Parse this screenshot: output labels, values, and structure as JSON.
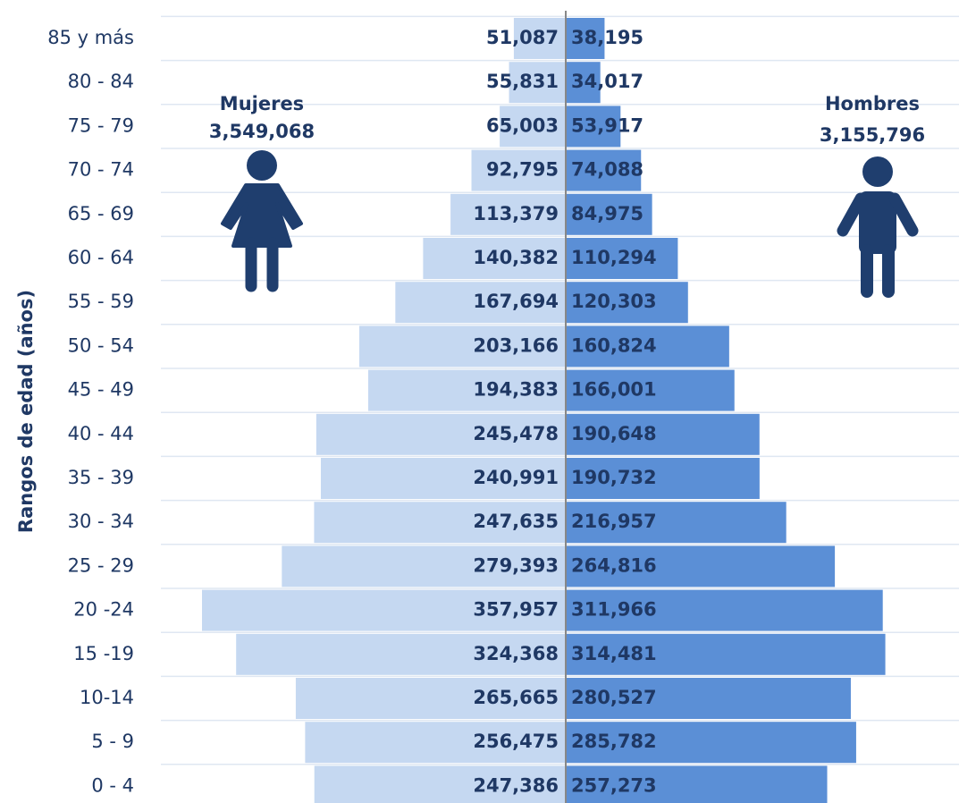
{
  "chart_data": {
    "type": "pyramid",
    "y_label": "Rangos de edad (años)",
    "categories": [
      "85 y más",
      "80 - 84",
      "75 - 79",
      "70 - 74",
      "65 - 69",
      "60 - 64",
      "55 - 59",
      "50 - 54",
      "45 - 49",
      "40 - 44",
      "35 - 39",
      "30 - 34",
      "25 - 29",
      "20 -24",
      "15 -19",
      "10-14",
      "5 - 9",
      "0 - 4"
    ],
    "series": [
      {
        "name": "Mujeres",
        "total_label": "3,549,068",
        "color": "#c5d8f1",
        "side": "left",
        "values": [
          51087,
          55831,
          65003,
          92795,
          113379,
          140382,
          167694,
          203166,
          194383,
          245478,
          240991,
          247635,
          279393,
          357957,
          324368,
          265665,
          256475,
          247386
        ],
        "value_labels": [
          "51,087",
          "55,831",
          "65,003",
          "92,795",
          "113,379",
          "140,382",
          "167,694",
          "203,166",
          "194,383",
          "245,478",
          "240,991",
          "247,635",
          "279,393",
          "357,957",
          "324,368",
          "265,665",
          "256,475",
          "247,386"
        ]
      },
      {
        "name": "Hombres",
        "total_label": "3,155,796",
        "color": "#5b8fd6",
        "side": "right",
        "values": [
          38195,
          34017,
          53917,
          74088,
          84975,
          110294,
          120303,
          160824,
          166001,
          190648,
          190732,
          216957,
          264816,
          311966,
          314481,
          280527,
          285782,
          257273
        ],
        "value_labels": [
          "38,195",
          "34,017",
          "53,917",
          "74,088",
          "84,975",
          "110,294",
          "120,303",
          "160,824",
          "166,001",
          "190,648",
          "190,732",
          "216,957",
          "264,816",
          "311,966",
          "314,481",
          "280,527",
          "285,782",
          "257,273"
        ]
      }
    ],
    "grid": true
  }
}
